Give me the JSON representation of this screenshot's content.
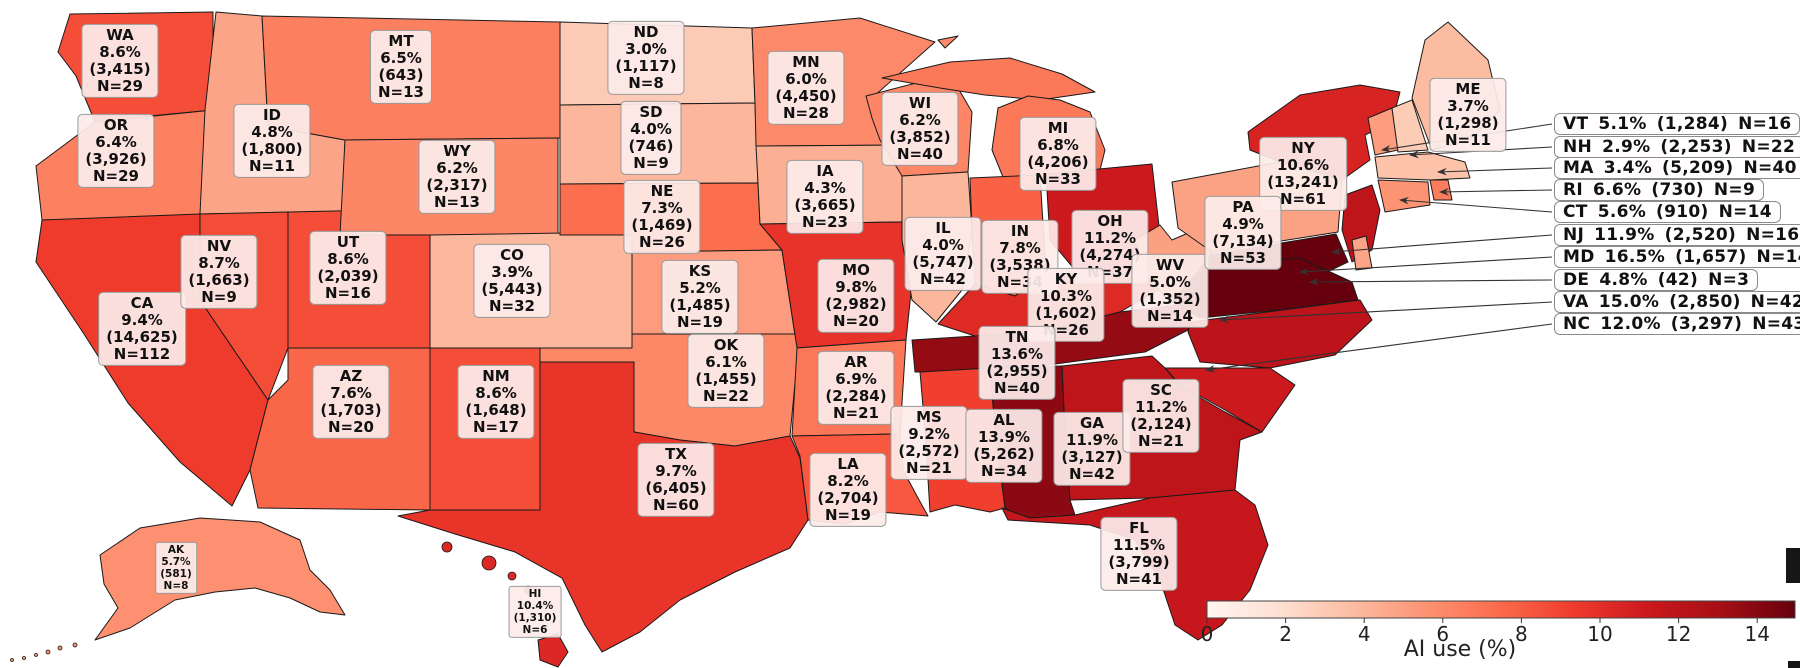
{
  "chart_data": {
    "type": "choropleth",
    "title": "",
    "metric": "AI use (%)",
    "colorbar": {
      "label": "AI use (%)",
      "ticks": [
        0,
        2,
        4,
        6,
        8,
        10,
        12,
        14
      ],
      "vmin": 0,
      "vmax": 15.0
    },
    "map_labeled_states": [
      {
        "abbr": "WA",
        "pct": "8.6%",
        "sample": "(3,415)",
        "n": "N=29",
        "value": 8.6
      },
      {
        "abbr": "OR",
        "pct": "6.4%",
        "sample": "(3,926)",
        "n": "N=29",
        "value": 6.4
      },
      {
        "abbr": "CA",
        "pct": "9.4%",
        "sample": "(14,625)",
        "n": "N=112",
        "value": 9.4
      },
      {
        "abbr": "ID",
        "pct": "4.8%",
        "sample": "(1,800)",
        "n": "N=11",
        "value": 4.8
      },
      {
        "abbr": "NV",
        "pct": "8.7%",
        "sample": "(1,663)",
        "n": "N=9",
        "value": 8.7
      },
      {
        "abbr": "UT",
        "pct": "8.6%",
        "sample": "(2,039)",
        "n": "N=16",
        "value": 8.6
      },
      {
        "abbr": "AZ",
        "pct": "7.6%",
        "sample": "(1,703)",
        "n": "N=20",
        "value": 7.6
      },
      {
        "abbr": "NM",
        "pct": "8.6%",
        "sample": "(1,648)",
        "n": "N=17",
        "value": 8.6
      },
      {
        "abbr": "MT",
        "pct": "6.5%",
        "sample": "(643)",
        "n": "N=13",
        "value": 6.5
      },
      {
        "abbr": "WY",
        "pct": "6.2%",
        "sample": "(2,317)",
        "n": "N=13",
        "value": 6.2
      },
      {
        "abbr": "CO",
        "pct": "3.9%",
        "sample": "(5,443)",
        "n": "N=32",
        "value": 3.9
      },
      {
        "abbr": "ND",
        "pct": "3.0%",
        "sample": "(1,117)",
        "n": "N=8",
        "value": 3.0
      },
      {
        "abbr": "SD",
        "pct": "4.0%",
        "sample": "(746)",
        "n": "N=9",
        "value": 4.0
      },
      {
        "abbr": "NE",
        "pct": "7.3%",
        "sample": "(1,469)",
        "n": "N=26",
        "value": 7.3
      },
      {
        "abbr": "KS",
        "pct": "5.2%",
        "sample": "(1,485)",
        "n": "N=19",
        "value": 5.2
      },
      {
        "abbr": "OK",
        "pct": "6.1%",
        "sample": "(1,455)",
        "n": "N=22",
        "value": 6.1
      },
      {
        "abbr": "TX",
        "pct": "9.7%",
        "sample": "(6,405)",
        "n": "N=60",
        "value": 9.7
      },
      {
        "abbr": "MN",
        "pct": "6.0%",
        "sample": "(4,450)",
        "n": "N=28",
        "value": 6.0
      },
      {
        "abbr": "IA",
        "pct": "4.3%",
        "sample": "(3,665)",
        "n": "N=23",
        "value": 4.3
      },
      {
        "abbr": "MO",
        "pct": "9.8%",
        "sample": "(2,982)",
        "n": "N=20",
        "value": 9.8
      },
      {
        "abbr": "AR",
        "pct": "6.9%",
        "sample": "(2,284)",
        "n": "N=21",
        "value": 6.9
      },
      {
        "abbr": "LA",
        "pct": "8.2%",
        "sample": "(2,704)",
        "n": "N=19",
        "value": 8.2
      },
      {
        "abbr": "WI",
        "pct": "6.2%",
        "sample": "(3,852)",
        "n": "N=40",
        "value": 6.2
      },
      {
        "abbr": "IL",
        "pct": "4.0%",
        "sample": "(5,747)",
        "n": "N=42",
        "value": 4.0
      },
      {
        "abbr": "MI",
        "pct": "6.8%",
        "sample": "(4,206)",
        "n": "N=33",
        "value": 6.8
      },
      {
        "abbr": "IN",
        "pct": "7.8%",
        "sample": "(3,538)",
        "n": "N=34",
        "value": 7.8
      },
      {
        "abbr": "OH",
        "pct": "11.2%",
        "sample": "(4,274)",
        "n": "N=37",
        "value": 11.2
      },
      {
        "abbr": "KY",
        "pct": "10.3%",
        "sample": "(1,602)",
        "n": "N=26",
        "value": 10.3
      },
      {
        "abbr": "WV",
        "pct": "5.0%",
        "sample": "(1,352)",
        "n": "N=14",
        "value": 5.0
      },
      {
        "abbr": "TN",
        "pct": "13.6%",
        "sample": "(2,955)",
        "n": "N=40",
        "value": 13.6
      },
      {
        "abbr": "MS",
        "pct": "9.2%",
        "sample": "(2,572)",
        "n": "N=21",
        "value": 9.2
      },
      {
        "abbr": "AL",
        "pct": "13.9%",
        "sample": "(5,262)",
        "n": "N=34",
        "value": 13.9
      },
      {
        "abbr": "GA",
        "pct": "11.9%",
        "sample": "(3,127)",
        "n": "N=42",
        "value": 11.9
      },
      {
        "abbr": "SC",
        "pct": "11.2%",
        "sample": "(2,124)",
        "n": "N=21",
        "value": 11.2
      },
      {
        "abbr": "FL",
        "pct": "11.5%",
        "sample": "(3,799)",
        "n": "N=41",
        "value": 11.5
      },
      {
        "abbr": "NY",
        "pct": "10.6%",
        "sample": "(13,241)",
        "n": "N=61",
        "value": 10.6
      },
      {
        "abbr": "PA",
        "pct": "4.9%",
        "sample": "(7,134)",
        "n": "N=53",
        "value": 4.9
      },
      {
        "abbr": "ME",
        "pct": "3.7%",
        "sample": "(1,298)",
        "n": "N=11",
        "value": 3.7
      },
      {
        "abbr": "AK",
        "pct": "5.7%",
        "sample": "(581)",
        "n": "N=8",
        "value": 5.7
      },
      {
        "abbr": "HI",
        "pct": "10.4%",
        "sample": "(1,310)",
        "n": "N=6",
        "value": 10.4
      }
    ],
    "callout_list_states": [
      {
        "abbr": "VT",
        "pct": "5.1%",
        "sample": "(1,284)",
        "n": "N=16",
        "value": 5.1
      },
      {
        "abbr": "NH",
        "pct": "2.9%",
        "sample": "(2,253)",
        "n": "N=22",
        "value": 2.9
      },
      {
        "abbr": "MA",
        "pct": "3.4%",
        "sample": "(5,209)",
        "n": "N=40",
        "value": 3.4
      },
      {
        "abbr": "RI",
        "pct": "6.6%",
        "sample": "(730)",
        "n": "N=9",
        "value": 6.6
      },
      {
        "abbr": "CT",
        "pct": "5.6%",
        "sample": "(910)",
        "n": "N=14",
        "value": 5.6
      },
      {
        "abbr": "NJ",
        "pct": "11.9%",
        "sample": "(2,520)",
        "n": "N=16",
        "value": 11.9
      },
      {
        "abbr": "MD",
        "pct": "16.5%",
        "sample": "(1,657)",
        "n": "N=14",
        "value": 16.5
      },
      {
        "abbr": "DE",
        "pct": "4.8%",
        "sample": "(42)",
        "n": "N=3",
        "value": 4.8
      },
      {
        "abbr": "VA",
        "pct": "15.0%",
        "sample": "(2,850)",
        "n": "N=42",
        "value": 15.0
      },
      {
        "abbr": "NC",
        "pct": "12.0%",
        "sample": "(3,297)",
        "n": "N=43",
        "value": 12.0
      }
    ],
    "colors": {
      "scale_low": "#fff5f0",
      "scale_high": "#67000d",
      "state_border": "#1a1a1a",
      "label_box_bg": "#fcecea",
      "arrow": "#333333"
    }
  }
}
